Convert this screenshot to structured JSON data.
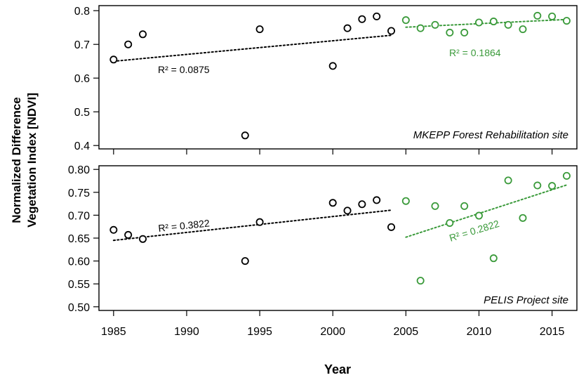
{
  "figure": {
    "ylabel_line1": "Normalized Difference",
    "ylabel_line2": "Vegetation Index [NDVI]",
    "xlabel": "Year"
  },
  "colors": {
    "early": "#000000",
    "late": "#3a9a3a"
  },
  "chart_data": [
    {
      "type": "scatter",
      "site_label": "MKEPP Forest Rehabilitation site",
      "xlim": [
        1984,
        2016.7
      ],
      "ylim": [
        0.39,
        0.815
      ],
      "yticks": [
        0.4,
        0.5,
        0.6,
        0.7,
        0.8
      ],
      "ytick_labels": [
        "0.4",
        "0.5",
        "0.6",
        "0.7",
        "0.8"
      ],
      "grid": false,
      "series": [
        {
          "color_key": "early",
          "x": [
            1985,
            1986,
            1987,
            1994,
            1995,
            2000,
            2001,
            2002,
            2003,
            2004
          ],
          "y": [
            0.655,
            0.7,
            0.73,
            0.43,
            0.745,
            0.636,
            0.748,
            0.775,
            0.783,
            0.74
          ],
          "trend": {
            "x": [
              1985,
              2004
            ],
            "y": [
              0.65,
              0.727
            ]
          },
          "r2_label": "R² = 0.0875"
        },
        {
          "color_key": "late",
          "x": [
            2005,
            2006,
            2007,
            2008,
            2009,
            2010,
            2011,
            2012,
            2013,
            2014,
            2015,
            2016
          ],
          "y": [
            0.772,
            0.748,
            0.758,
            0.735,
            0.735,
            0.765,
            0.768,
            0.758,
            0.745,
            0.785,
            0.783,
            0.77
          ],
          "trend": {
            "x": [
              2005,
              2016
            ],
            "y": [
              0.751,
              0.774
            ]
          },
          "r2_label": "R² = 0.1864"
        }
      ]
    },
    {
      "type": "scatter",
      "site_label": "PELIS Project site",
      "xlim": [
        1984,
        2016.7
      ],
      "ylim": [
        0.492,
        0.808
      ],
      "yticks": [
        0.5,
        0.55,
        0.6,
        0.65,
        0.7,
        0.75,
        0.8
      ],
      "ytick_labels": [
        "0.50",
        "0.55",
        "0.60",
        "0.65",
        "0.70",
        "0.75",
        "0.80"
      ],
      "xticks": [
        1985,
        1990,
        1995,
        2000,
        2005,
        2010,
        2015
      ],
      "xtick_labels": [
        "1985",
        "1990",
        "1995",
        "2000",
        "2005",
        "2010",
        "2015"
      ],
      "grid": false,
      "series": [
        {
          "color_key": "early",
          "x": [
            1985,
            1986,
            1987,
            1994,
            1995,
            2000,
            2001,
            2002,
            2003,
            2004
          ],
          "y": [
            0.668,
            0.657,
            0.648,
            0.6,
            0.685,
            0.727,
            0.71,
            0.724,
            0.733,
            0.674
          ],
          "trend": {
            "x": [
              1985,
              2004
            ],
            "y": [
              0.645,
              0.711
            ]
          },
          "r2_label": "R² = 0.3822"
        },
        {
          "color_key": "late",
          "x": [
            2005,
            2006,
            2007,
            2008,
            2009,
            2010,
            2011,
            2012,
            2013,
            2014,
            2015,
            2016
          ],
          "y": [
            0.731,
            0.557,
            0.72,
            0.683,
            0.72,
            0.699,
            0.606,
            0.776,
            0.694,
            0.765,
            0.764,
            0.786
          ],
          "trend": {
            "x": [
              2005,
              2016
            ],
            "y": [
              0.652,
              0.766
            ]
          },
          "r2_label": "R² = 0.2822"
        }
      ]
    }
  ]
}
